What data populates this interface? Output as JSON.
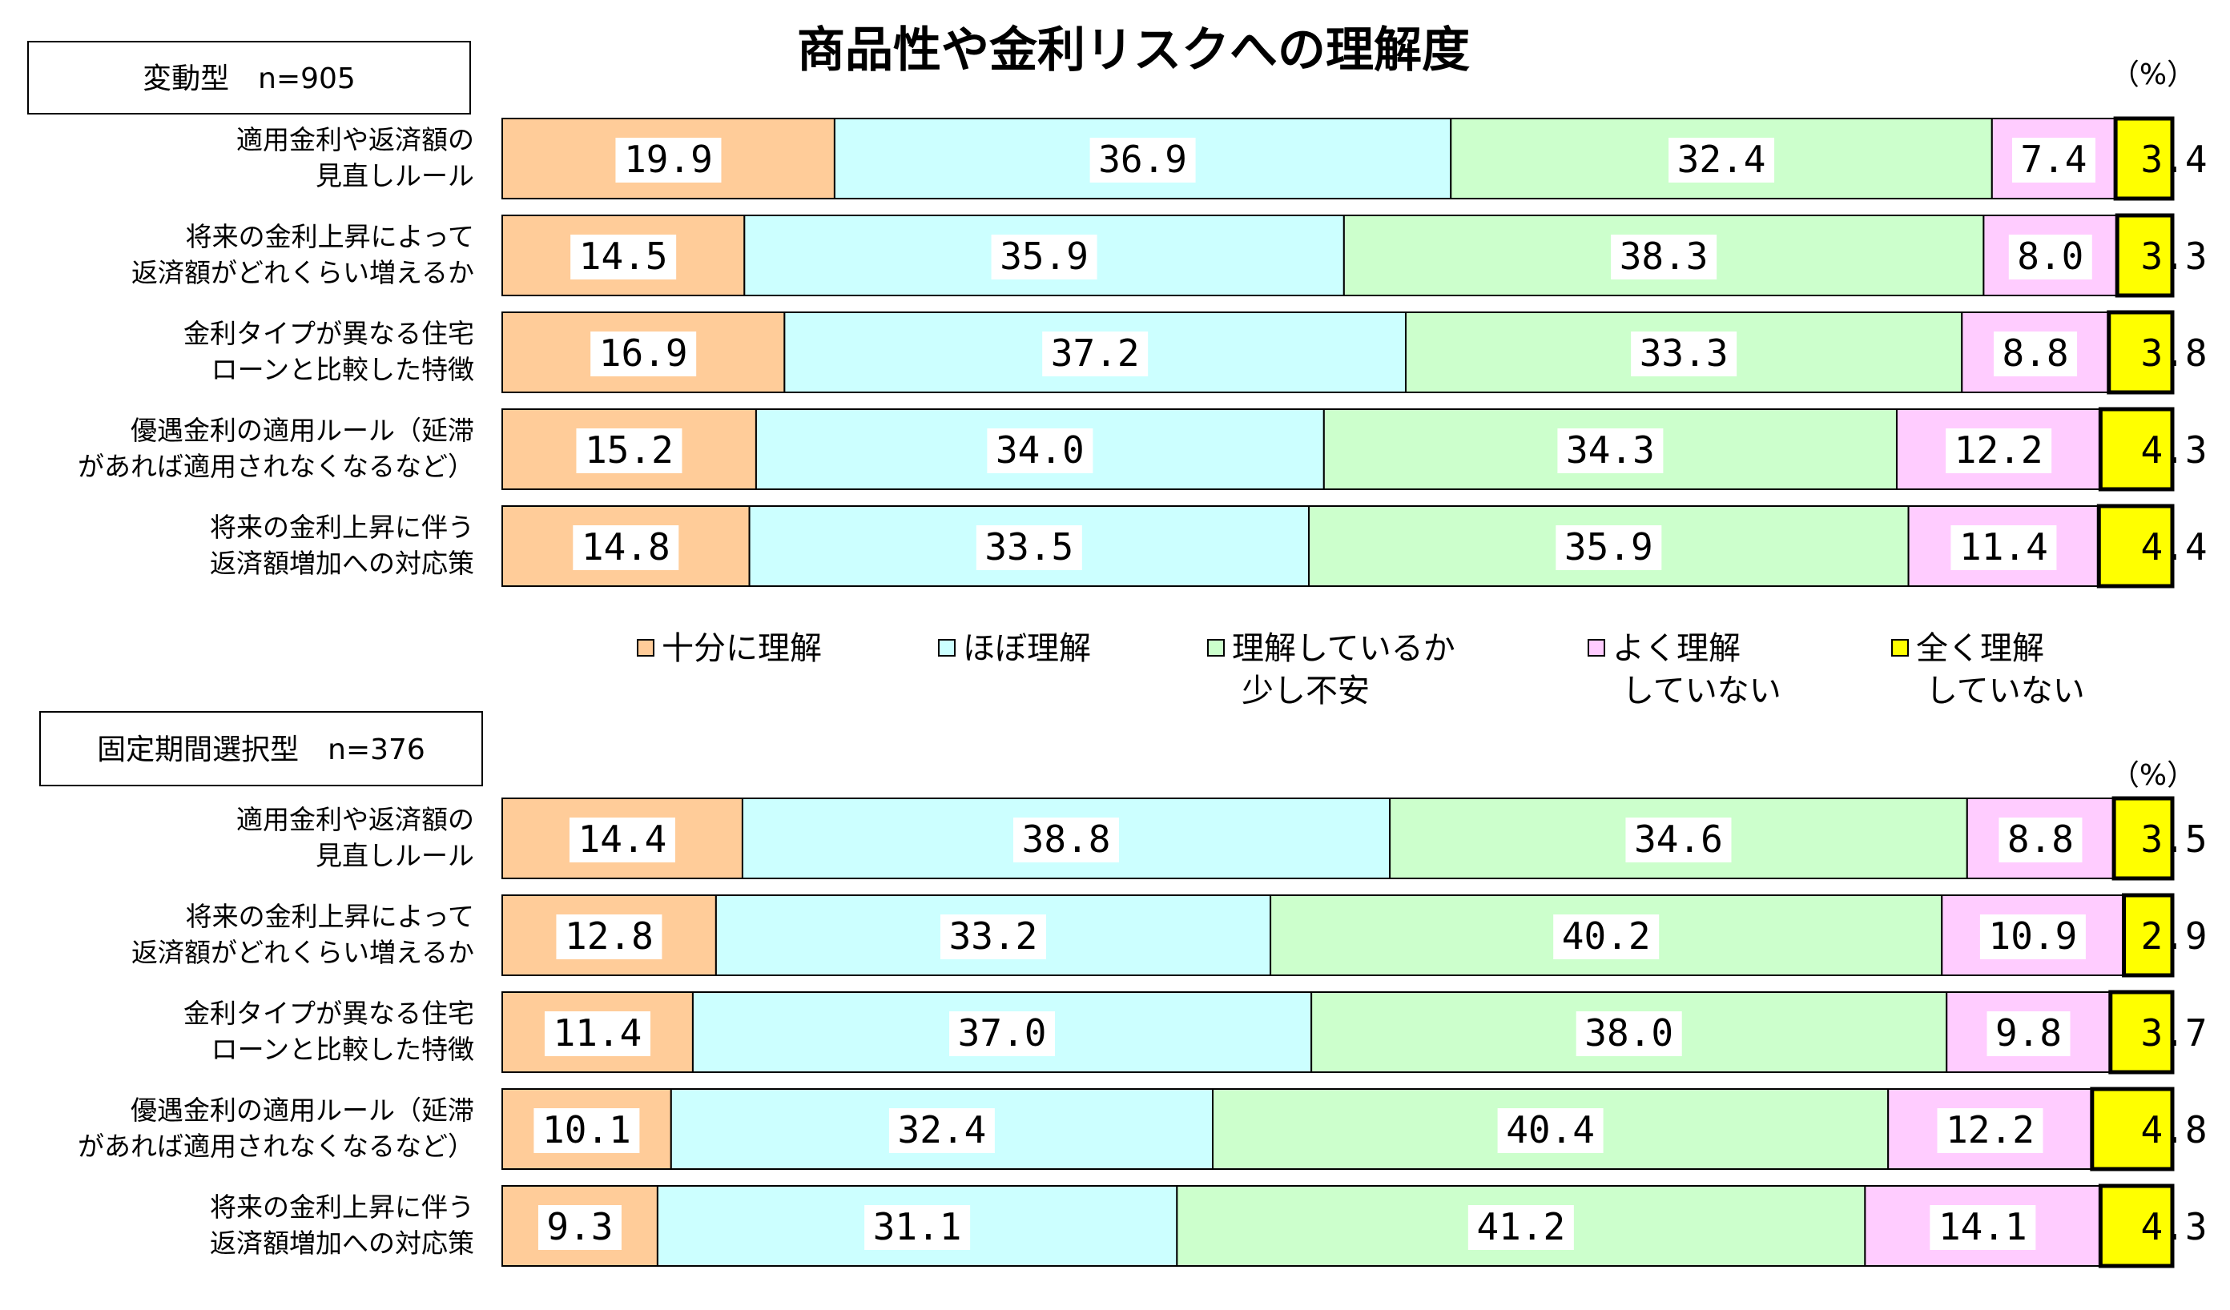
{
  "chart_data": {
    "type": "bar",
    "stacked": true,
    "orientation": "horizontal",
    "title": "商品性や金利リスクへの理解度",
    "unit": "（%）",
    "colors": [
      "#FFCC99",
      "#CCFFFF",
      "#CCFFCC",
      "#FFCCFF",
      "#FFFF00"
    ],
    "legend": [
      [
        "十分に理解"
      ],
      [
        "ほぼ理解"
      ],
      [
        "理解しているか",
        "少し不安"
      ],
      [
        "よく理解",
        "していない"
      ],
      [
        "全く理解",
        "していない"
      ]
    ],
    "groups": [
      {
        "name": "変動型　n=905",
        "categories": [
          [
            "適用金利や返済額の",
            "見直しルール"
          ],
          [
            "将来の金利上昇によって",
            "返済額がどれくらい増えるか"
          ],
          [
            "金利タイプが異なる住宅",
            "ローンと比較した特徴"
          ],
          [
            "優遇金利の適用ルール（延滞",
            "があれば適用されなくなるなど）"
          ],
          [
            "将来の金利上昇に伴う",
            "返済額増加への対応策"
          ]
        ],
        "values": [
          [
            "19.9",
            "36.9",
            "32.4",
            "7.4",
            "3.4"
          ],
          [
            "14.5",
            "35.9",
            "38.3",
            "8.0",
            "3.3"
          ],
          [
            "16.9",
            "37.2",
            "33.3",
            "8.8",
            "3.8"
          ],
          [
            "15.2",
            "34.0",
            "34.3",
            "12.2",
            "4.3"
          ],
          [
            "14.8",
            "33.5",
            "35.9",
            "11.4",
            "4.4"
          ]
        ]
      },
      {
        "name": "固定期間選択型　n=376",
        "categories": [
          [
            "適用金利や返済額の",
            "見直しルール"
          ],
          [
            "将来の金利上昇によって",
            "返済額がどれくらい増えるか"
          ],
          [
            "金利タイプが異なる住宅",
            "ローンと比較した特徴"
          ],
          [
            "優遇金利の適用ルール（延滞",
            "があれば適用されなくなるなど）"
          ],
          [
            "将来の金利上昇に伴う",
            "返済額増加への対応策"
          ]
        ],
        "values": [
          [
            "14.4",
            "38.8",
            "34.6",
            "8.8",
            "3.5"
          ],
          [
            "12.8",
            "33.2",
            "40.2",
            "10.9",
            "2.9"
          ],
          [
            "11.4",
            "37.0",
            "38.0",
            "9.8",
            "3.7"
          ],
          [
            "10.1",
            "32.4",
            "40.4",
            "12.2",
            "4.8"
          ],
          [
            "9.3",
            "31.1",
            "41.2",
            "14.1",
            "4.3"
          ]
        ]
      }
    ]
  }
}
